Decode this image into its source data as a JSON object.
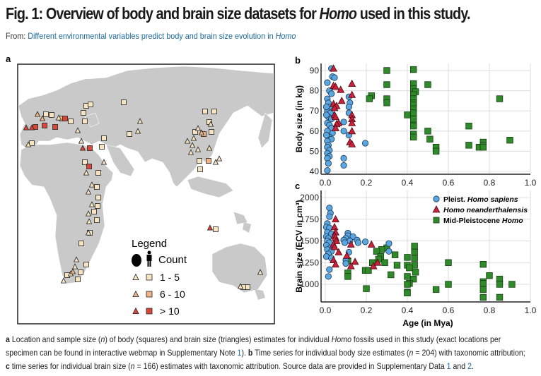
{
  "header": {
    "title_prefix": "Fig. 1: Overview of body and brain size datasets for ",
    "title_italic": "Homo",
    "title_suffix": " used in this study.",
    "from_label": "From: ",
    "from_link": "Different environmental variables predict body and brain size evolution in ",
    "from_link_italic": "Homo"
  },
  "panels": {
    "a": "a",
    "b": "b",
    "c": "c"
  },
  "map": {
    "legend_title": "Legend",
    "legend_count": "Count",
    "legend_rows": [
      {
        "label": "1 - 5",
        "color": "#f7e4c0"
      },
      {
        "label": "6 - 10",
        "color": "#f0b384"
      },
      {
        "label": "> 10",
        "color": "#d9483b"
      }
    ],
    "land_color": "#c9c9c9"
  },
  "colors": {
    "sapiens": "#5aa6e0",
    "neanderthalensis": "#c8213a",
    "mid_pleistocene": "#2f8a2a"
  },
  "chart_data": [
    {
      "type": "scatter",
      "panel": "b",
      "ylabel": "Body size (in kg)",
      "xlim": [
        0,
        1.0
      ],
      "ylim": [
        40,
        92
      ],
      "xticks": [
        "0.0",
        "0.2",
        "0.4",
        "0.6",
        "0.8",
        "1.0"
      ],
      "yticks": [
        "40",
        "50",
        "60",
        "70",
        "80",
        "90"
      ],
      "grid": true,
      "series": [
        {
          "key": "sapiens",
          "marker": "circle",
          "points": [
            [
              0.03,
              91
            ],
            [
              0.035,
              87
            ],
            [
              0.045,
              86.5
            ],
            [
              0.01,
              84
            ],
            [
              0.02,
              80
            ],
            [
              0.03,
              78.5
            ],
            [
              0.01,
              76
            ],
            [
              0.015,
              74
            ],
            [
              0.02,
              72
            ],
            [
              0.01,
              70
            ],
            [
              0.025,
              69
            ],
            [
              0.015,
              67
            ],
            [
              0.03,
              66
            ],
            [
              0.01,
              64
            ],
            [
              0.02,
              63
            ],
            [
              0.03,
              61.5
            ],
            [
              0.01,
              60
            ],
            [
              0.035,
              59
            ],
            [
              0.02,
              57
            ],
            [
              0.03,
              56
            ],
            [
              0.01,
              55
            ],
            [
              0.015,
              53
            ],
            [
              0.01,
              52
            ],
            [
              0.02,
              50.5
            ],
            [
              0.01,
              49
            ],
            [
              0.02,
              47.5
            ],
            [
              0.01,
              46.5
            ],
            [
              0.015,
              44
            ],
            [
              0.01,
              40.5
            ],
            [
              0.115,
              77
            ],
            [
              0.12,
              74
            ],
            [
              0.115,
              72
            ],
            [
              0.115,
              69
            ],
            [
              0.09,
              64.5
            ],
            [
              0.09,
              60
            ],
            [
              0.115,
              58
            ],
            [
              0.09,
              46.5
            ],
            [
              0.09,
              43
            ],
            [
              0.195,
              54
            ],
            [
              0.005,
              72
            ],
            [
              0.005,
              68
            ],
            [
              0.005,
              58
            ]
          ]
        },
        {
          "key": "neanderthalensis",
          "marker": "triangle",
          "points": [
            [
              0.04,
              91
            ],
            [
              0.04,
              82.5
            ],
            [
              0.05,
              82
            ],
            [
              0.075,
              80.5
            ],
            [
              0.13,
              83.5
            ],
            [
              0.13,
              78
            ],
            [
              0.08,
              75
            ],
            [
              0.04,
              73.5
            ],
            [
              0.055,
              72.5
            ],
            [
              0.045,
              71.5
            ],
            [
              0.045,
              68
            ],
            [
              0.05,
              67
            ],
            [
              0.13,
              68
            ],
            [
              0.13,
              66
            ],
            [
              0.065,
              64
            ],
            [
              0.055,
              63.5
            ],
            [
              0.13,
              64
            ],
            [
              0.05,
              61.5
            ],
            [
              0.13,
              60
            ],
            [
              0.12,
              54.5
            ],
            [
              0.13,
              53.5
            ]
          ]
        },
        {
          "key": "mid_pleistocene",
          "marker": "square",
          "points": [
            [
              0.3,
              90
            ],
            [
              0.43,
              90.5
            ],
            [
              0.3,
              83
            ],
            [
              0.43,
              83.5
            ],
            [
              0.5,
              83
            ],
            [
              0.43,
              81
            ],
            [
              0.44,
              79.5
            ],
            [
              0.43,
              78
            ],
            [
              0.225,
              77.5
            ],
            [
              0.215,
              76
            ],
            [
              0.3,
              76
            ],
            [
              0.3,
              74
            ],
            [
              0.43,
              76
            ],
            [
              0.43,
              74
            ],
            [
              0.43,
              73
            ],
            [
              0.43,
              71
            ],
            [
              0.43,
              69
            ],
            [
              0.4,
              68
            ],
            [
              0.43,
              66
            ],
            [
              0.43,
              63
            ],
            [
              0.43,
              62.5
            ],
            [
              0.43,
              58.5
            ],
            [
              0.43,
              57
            ],
            [
              0.5,
              60
            ],
            [
              0.51,
              56
            ],
            [
              0.54,
              52
            ],
            [
              0.54,
              50
            ],
            [
              0.7,
              62.5
            ],
            [
              0.7,
              53
            ],
            [
              0.75,
              52
            ],
            [
              0.77,
              54.5
            ],
            [
              0.77,
              53
            ],
            [
              0.77,
              52
            ],
            [
              0.85,
              76
            ],
            [
              0.9,
              55.5
            ]
          ]
        }
      ]
    },
    {
      "type": "scatter",
      "panel": "c",
      "xlabel": "Age (in Mya)",
      "ylabel": "Brain size (ECV in cm³)",
      "xlim": [
        0,
        1.0
      ],
      "ylim": [
        800,
        2020
      ],
      "xticks": [
        "0.0",
        "0.2",
        "0.4",
        "0.6",
        "0.8",
        "1.0"
      ],
      "yticks": [
        "1000",
        "1250",
        "1500",
        "1750",
        "2000"
      ],
      "grid": true,
      "legend": "top-right",
      "series": [
        {
          "key": "sapiens",
          "marker": "circle",
          "name_prefix": "Pleist. ",
          "name_italic": "Homo sapiens",
          "name_suffix": "",
          "points": [
            [
              0.02,
              1880
            ],
            [
              0.025,
              1820
            ],
            [
              0.02,
              1780
            ],
            [
              0.01,
              1700
            ],
            [
              0.005,
              1660
            ],
            [
              0.02,
              1650
            ],
            [
              0.01,
              1600
            ],
            [
              0.03,
              1580
            ],
            [
              0.005,
              1550
            ],
            [
              0.015,
              1530
            ],
            [
              0.01,
              1500
            ],
            [
              0.02,
              1480
            ],
            [
              0.005,
              1450
            ],
            [
              0.025,
              1420
            ],
            [
              0.01,
              1400
            ],
            [
              0.03,
              1380
            ],
            [
              0.015,
              1350
            ],
            [
              0.005,
              1320
            ],
            [
              0.03,
              1300
            ],
            [
              0.02,
              1170
            ],
            [
              0.015,
              1090
            ],
            [
              0.11,
              1590
            ],
            [
              0.11,
              1560
            ],
            [
              0.135,
              1550
            ],
            [
              0.1,
              1530
            ],
            [
              0.155,
              1510
            ],
            [
              0.12,
              1500
            ],
            [
              0.09,
              1510
            ],
            [
              0.16,
              1480
            ],
            [
              0.095,
              1480
            ],
            [
              0.195,
              1490
            ],
            [
              0.31,
              1470
            ],
            [
              0.31,
              1380
            ],
            [
              0.115,
              1370
            ],
            [
              0.1,
              1280
            ],
            [
              0.1,
              1240
            ]
          ]
        },
        {
          "key": "neanderthalensis",
          "marker": "triangle",
          "name_prefix": "",
          "name_italic": "Homo neanderthalensis",
          "name_suffix": "",
          "points": [
            [
              0.05,
              1750
            ],
            [
              0.045,
              1660
            ],
            [
              0.05,
              1600
            ],
            [
              0.045,
              1560
            ],
            [
              0.05,
              1540
            ],
            [
              0.055,
              1500
            ],
            [
              0.04,
              1460
            ],
            [
              0.045,
              1430
            ],
            [
              0.125,
              1460
            ],
            [
              0.225,
              1460
            ],
            [
              0.065,
              1370
            ],
            [
              0.105,
              1330
            ],
            [
              0.04,
              1280
            ],
            [
              0.145,
              1260
            ],
            [
              0.05,
              1230
            ],
            [
              0.125,
              1210
            ],
            [
              0.235,
              1210
            ],
            [
              0.255,
              1250
            ]
          ]
        },
        {
          "key": "mid_pleistocene",
          "marker": "square",
          "name_prefix": "Mid-Pleistocene ",
          "name_italic": "Homo",
          "name_suffix": "",
          "points": [
            [
              0.435,
              1440
            ],
            [
              0.3,
              1420
            ],
            [
              0.275,
              1400
            ],
            [
              0.25,
              1380
            ],
            [
              0.435,
              1370
            ],
            [
              0.34,
              1340
            ],
            [
              0.27,
              1320
            ],
            [
              0.4,
              1310
            ],
            [
              0.435,
              1300
            ],
            [
              0.26,
              1290
            ],
            [
              0.11,
              1270
            ],
            [
              0.23,
              1250
            ],
            [
              0.29,
              1250
            ],
            [
              0.6,
              1250
            ],
            [
              0.77,
              1230
            ],
            [
              0.4,
              1220
            ],
            [
              0.35,
              1220
            ],
            [
              0.435,
              1220
            ],
            [
              0.41,
              1190
            ],
            [
              0.195,
              1160
            ],
            [
              0.21,
              1160
            ],
            [
              0.44,
              1140
            ],
            [
              0.11,
              1130
            ],
            [
              0.32,
              1110
            ],
            [
              0.8,
              1100
            ],
            [
              0.4,
              1090
            ],
            [
              0.11,
              1090
            ],
            [
              0.43,
              1060
            ],
            [
              0.85,
              1060
            ],
            [
              0.77,
              1030
            ],
            [
              0.41,
              1010
            ],
            [
              0.4,
              1000
            ],
            [
              0.77,
              1010
            ],
            [
              0.85,
              1000
            ],
            [
              0.6,
              1000
            ],
            [
              0.91,
              1000
            ],
            [
              0.2,
              950
            ],
            [
              0.54,
              940
            ],
            [
              0.77,
              940
            ],
            [
              0.4,
              910
            ],
            [
              0.4,
              900
            ],
            [
              0.77,
              850
            ],
            [
              0.85,
              850
            ]
          ]
        }
      ]
    }
  ],
  "caption": {
    "a_label": "a",
    "a_text_1": " Location and sample size (",
    "n": "n",
    "a_text_2": ") of body (squares) and brain size (triangles) estimates for individual ",
    "homo": "Homo",
    "a_text_3": " fossils used in this study (exact locations per specimen can be found in interactive webmap in Supplementary Note ",
    "note_link": "1",
    "a_text_4": "). ",
    "b_label": "b",
    "b_text_1": " Time series for individual body size estimates (",
    "b_text_2": " = 204) with taxonomic attribution; ",
    "c_label": "c",
    "c_text_1": " time series for individual brain size (",
    "c_text_2": " = 166) estimates with taxonomic attribution. Source data are provided in Supplementary Data ",
    "data_link_1": "1",
    "and": " and ",
    "data_link_2": "2",
    "end": "."
  }
}
